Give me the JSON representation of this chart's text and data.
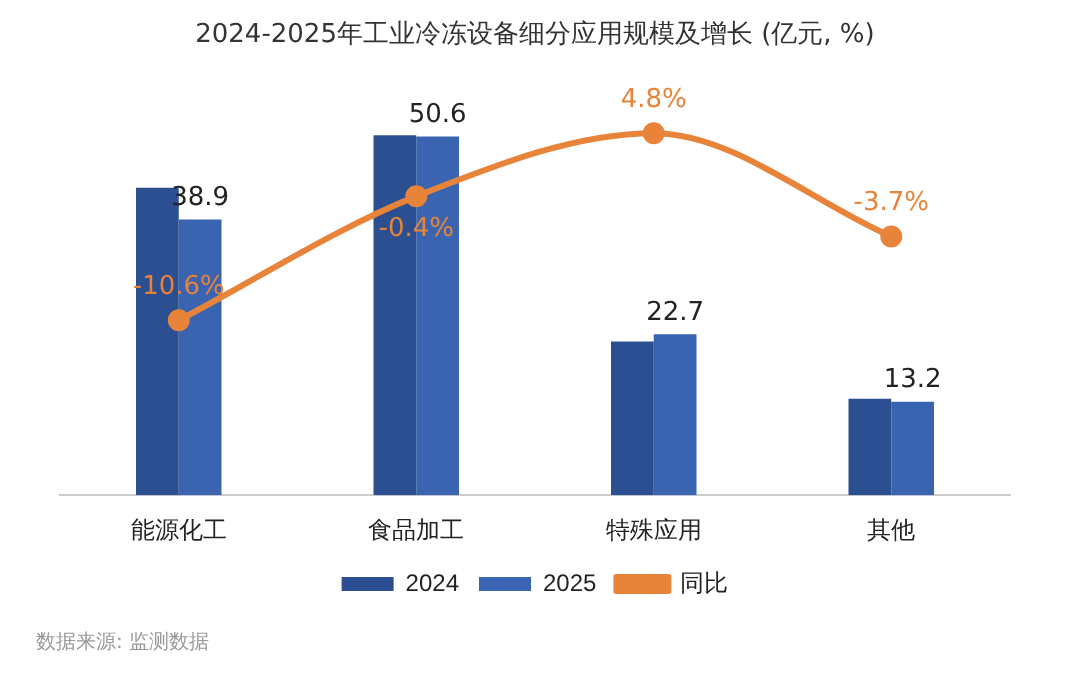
{
  "chart_data": {
    "type": "bar",
    "title": "2024-2025年工业冷冻设备细分应用规模及增长 (亿元, %)",
    "categories": [
      "能源化工",
      "食品加工",
      "特殊应用",
      "其他"
    ],
    "series": [
      {
        "name": "2024",
        "color": "#2b4f91",
        "values": [
          43.4,
          50.8,
          21.7,
          13.6
        ]
      },
      {
        "name": "2025",
        "color": "#3a64b0",
        "values": [
          38.9,
          50.6,
          22.7,
          13.2
        ],
        "value_labels": [
          "38.9",
          "50.6",
          "22.7",
          "13.2"
        ]
      },
      {
        "name": "同比",
        "type": "line",
        "axis": "y2",
        "color": "#e8843a",
        "values": [
          -10.6,
          -0.4,
          4.8,
          -3.7
        ],
        "value_labels": [
          "-10.6%",
          "-0.4%",
          "4.8%",
          "-3.7%"
        ]
      }
    ],
    "tick_labels": "x",
    "grid": false,
    "legend": "bottom",
    "marker": "circle",
    "annotations": [
      "数据来源: 监测数据"
    ]
  }
}
